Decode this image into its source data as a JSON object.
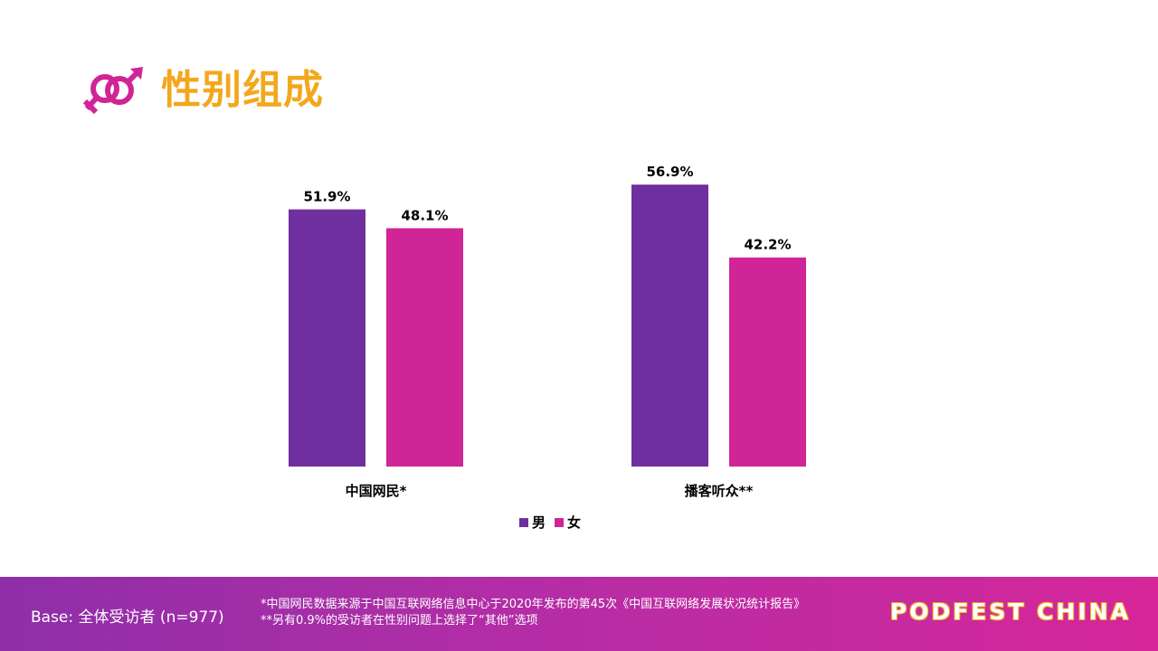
{
  "header": {
    "title": "性别组成",
    "icon": "gender-symbols-icon"
  },
  "colors": {
    "male": "#6f2f9e",
    "female": "#d02596",
    "title": "#f2a81d"
  },
  "chart_data": {
    "type": "bar",
    "categories": [
      "中国网民*",
      "播客听众**"
    ],
    "series": [
      {
        "name": "男",
        "values": [
          51.9,
          56.9
        ],
        "labels": [
          "51.9%",
          "56.9%"
        ]
      },
      {
        "name": "女",
        "values": [
          48.1,
          42.2
        ],
        "labels": [
          "48.1%",
          "42.2%"
        ]
      }
    ],
    "legend": "bottom-center",
    "grid": false
  },
  "footer": {
    "base": "Base: 全体受访者 (n=977)",
    "note1": "*中国网民数据来源于中国互联网络信息中心于2020年发布的第45次《中国互联网络发展状况统计报告》",
    "note2": "**另有0.9%的受访者在性别问题上选择了“其他”选项",
    "brand": "PODFEST CHINA"
  }
}
